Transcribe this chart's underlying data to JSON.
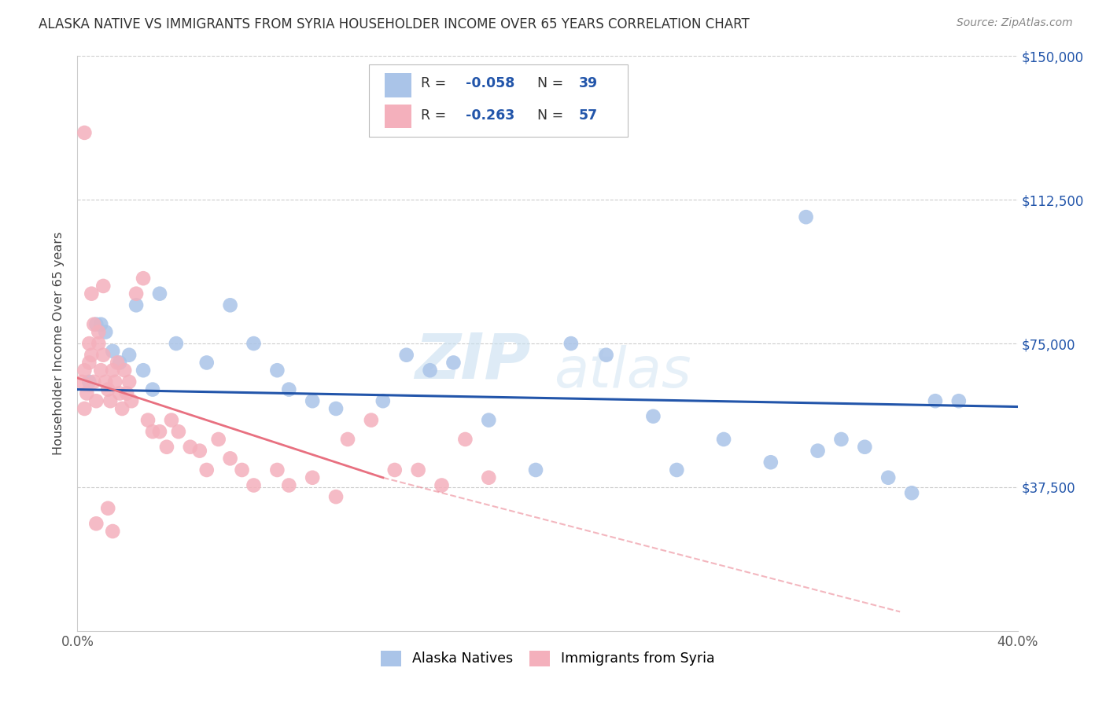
{
  "title": "ALASKA NATIVE VS IMMIGRANTS FROM SYRIA HOUSEHOLDER INCOME OVER 65 YEARS CORRELATION CHART",
  "source": "Source: ZipAtlas.com",
  "ylabel": "Householder Income Over 65 years",
  "xlim": [
    0.0,
    0.4
  ],
  "ylim": [
    0,
    150000
  ],
  "blue_color": "#aac4e8",
  "pink_color": "#f4b0bc",
  "blue_line_color": "#2255aa",
  "pink_line_color": "#e87080",
  "grid_color": "#cccccc",
  "watermark_zip": "ZIP",
  "watermark_atlas": "atlas",
  "blue_x": [
    0.005,
    0.008,
    0.01,
    0.012,
    0.015,
    0.018,
    0.022,
    0.025,
    0.028,
    0.032,
    0.035,
    0.042,
    0.055,
    0.065,
    0.075,
    0.085,
    0.09,
    0.1,
    0.11,
    0.13,
    0.14,
    0.15,
    0.16,
    0.175,
    0.195,
    0.21,
    0.225,
    0.245,
    0.255,
    0.275,
    0.295,
    0.31,
    0.315,
    0.325,
    0.335,
    0.345,
    0.355,
    0.365,
    0.375
  ],
  "blue_y": [
    65000,
    80000,
    80000,
    78000,
    73000,
    70000,
    72000,
    85000,
    68000,
    63000,
    88000,
    75000,
    70000,
    85000,
    75000,
    68000,
    63000,
    60000,
    58000,
    60000,
    72000,
    68000,
    70000,
    55000,
    42000,
    75000,
    72000,
    56000,
    42000,
    50000,
    44000,
    108000,
    47000,
    50000,
    48000,
    40000,
    36000,
    60000,
    60000
  ],
  "pink_x": [
    0.002,
    0.003,
    0.004,
    0.005,
    0.006,
    0.007,
    0.008,
    0.009,
    0.01,
    0.011,
    0.012,
    0.013,
    0.014,
    0.015,
    0.016,
    0.017,
    0.018,
    0.019,
    0.02,
    0.021,
    0.022,
    0.023,
    0.025,
    0.028,
    0.03,
    0.032,
    0.035,
    0.038,
    0.04,
    0.043,
    0.048,
    0.052,
    0.055,
    0.06,
    0.065,
    0.07,
    0.075,
    0.085,
    0.09,
    0.1,
    0.11,
    0.115,
    0.125,
    0.135,
    0.145,
    0.155,
    0.165,
    0.175,
    0.01,
    0.008,
    0.006,
    0.003,
    0.005,
    0.007,
    0.009,
    0.012,
    0.015
  ],
  "pink_y": [
    65000,
    68000,
    62000,
    70000,
    72000,
    65000,
    60000,
    75000,
    68000,
    72000,
    65000,
    63000,
    60000,
    68000,
    65000,
    70000,
    62000,
    58000,
    68000,
    62000,
    65000,
    60000,
    85000,
    90000,
    55000,
    52000,
    52000,
    48000,
    55000,
    52000,
    48000,
    47000,
    42000,
    50000,
    45000,
    42000,
    38000,
    42000,
    38000,
    42000,
    40000,
    50000,
    55000,
    45000,
    45000,
    40000,
    50000,
    42000,
    55000,
    58000,
    75000,
    78000,
    72000,
    63000,
    28000,
    32000,
    26000
  ]
}
